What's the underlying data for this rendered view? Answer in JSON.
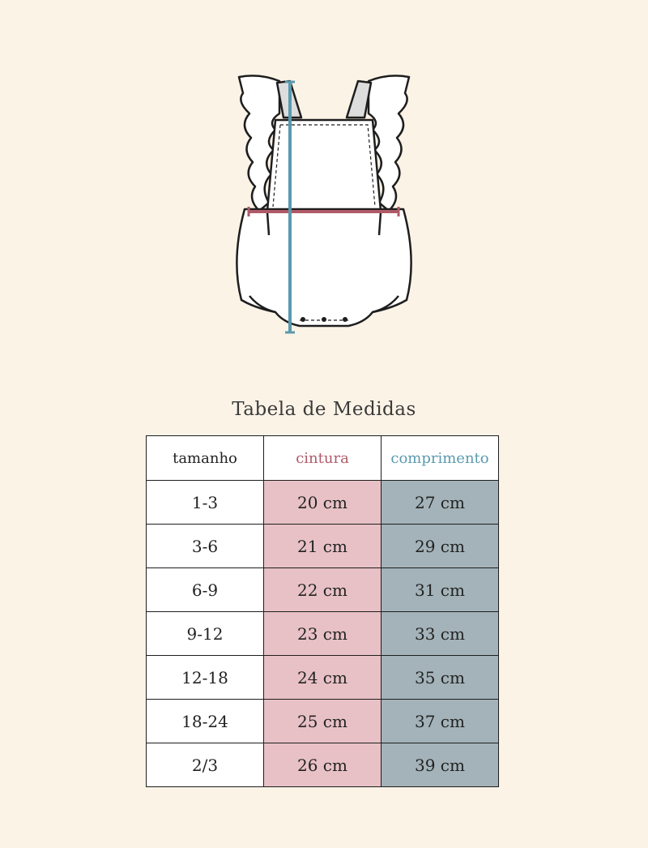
{
  "title": "Tabela de Medidas",
  "colors": {
    "background": "#fcf3e7",
    "cintura": "#b05a68",
    "comprimento": "#5a9aae",
    "cintura_cell": "#e8c1c6",
    "comprimento_cell": "#a3b3b9"
  },
  "illustration": {
    "subject": "romper-garment-drawing",
    "waist_line_color": "#b05a68",
    "length_line_color": "#5a9aae"
  },
  "table": {
    "headers": [
      "tamanho",
      "cintura",
      "comprimento"
    ],
    "rows": [
      [
        "1-3",
        "20 cm",
        "27 cm"
      ],
      [
        "3-6",
        "21 cm",
        "29 cm"
      ],
      [
        "6-9",
        "22 cm",
        "31 cm"
      ],
      [
        "9-12",
        "23 cm",
        "33 cm"
      ],
      [
        "12-18",
        "24 cm",
        "35 cm"
      ],
      [
        "18-24",
        "25 cm",
        "37 cm"
      ],
      [
        "2/3",
        "26 cm",
        "39 cm"
      ]
    ]
  }
}
